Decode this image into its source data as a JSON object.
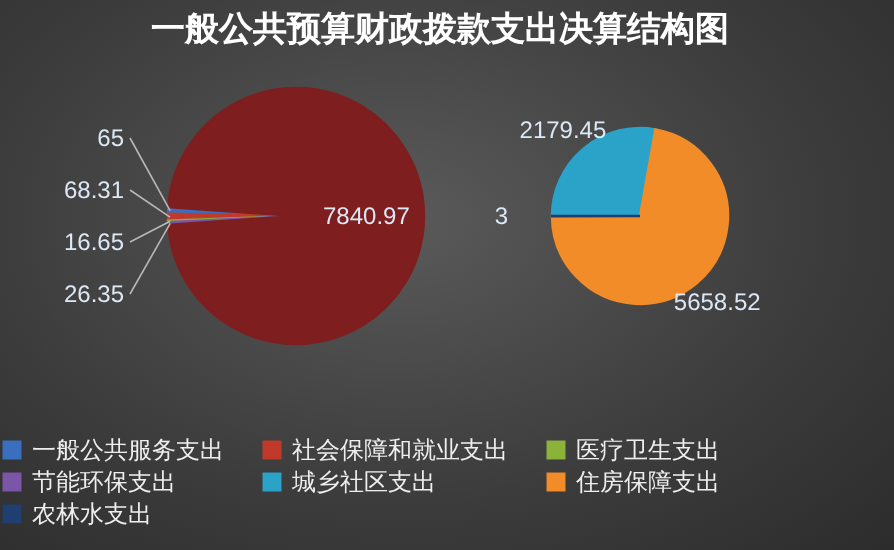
{
  "chart_data": [
    {
      "type": "pie",
      "title": "一般公共预算财政拨款支出决算结构图",
      "categories": [
        "一般公共服务支出",
        "社会保障和就业支出",
        "医疗卫生支出",
        "节能环保支出",
        null
      ],
      "values": [
        65,
        68.31,
        16.65,
        26.35,
        7840.97
      ],
      "colors": [
        "#3a6fc0",
        "#c0392b",
        "#8bb33a",
        "#7b55a8",
        "#7f1e1e"
      ],
      "data_labels": true,
      "legend": "bottom"
    },
    {
      "type": "pie",
      "categories": [
        "城乡社区支出",
        "住房保障支出",
        "农林水支出"
      ],
      "values": [
        2179.45,
        5658.52,
        3
      ],
      "colors": [
        "#2ba3c8",
        "#f28c28",
        "#1f3f70"
      ],
      "data_labels": true,
      "legend": "bottom"
    }
  ]
}
